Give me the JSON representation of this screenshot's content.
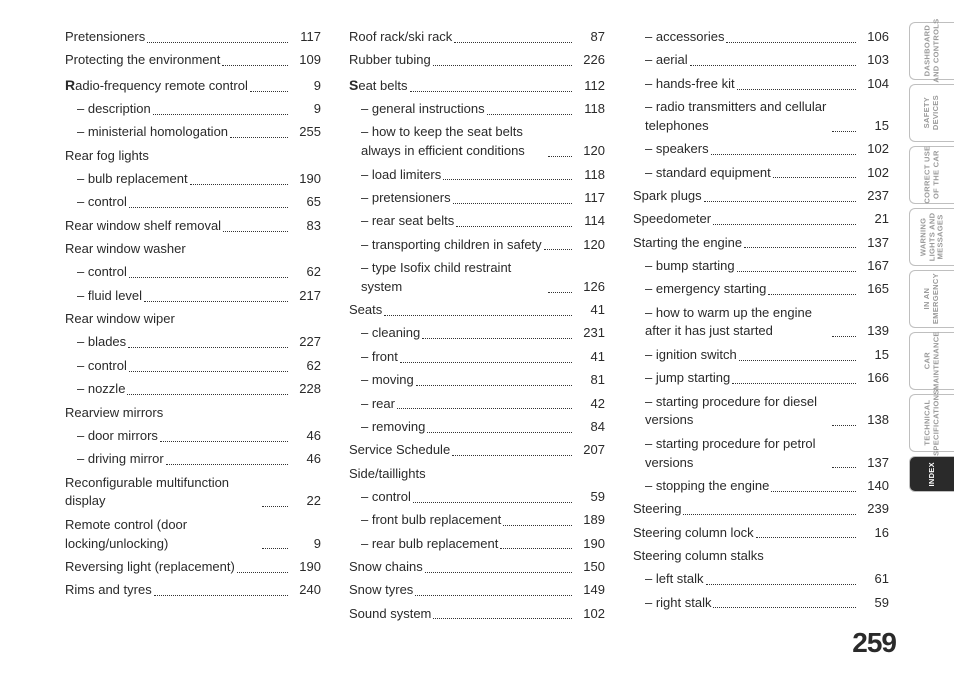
{
  "page_number": "259",
  "columns": [
    [
      {
        "t": "e",
        "label": "Pretensioners",
        "pg": "117"
      },
      {
        "t": "e",
        "label": "Protecting the environment",
        "pg": "109"
      },
      {
        "t": "e",
        "label": "adio-frequency remote control",
        "pg": "9",
        "cap": "R",
        "bold": true
      },
      {
        "t": "e",
        "label": "– description",
        "pg": "9",
        "sub": true
      },
      {
        "t": "e",
        "label": "– ministerial homologation",
        "pg": "255",
        "sub": true
      },
      {
        "t": "h",
        "label": "Rear fog lights"
      },
      {
        "t": "e",
        "label": "– bulb replacement",
        "pg": "190",
        "sub": true
      },
      {
        "t": "e",
        "label": "– control",
        "pg": "65",
        "sub": true
      },
      {
        "t": "e",
        "label": "Rear window shelf removal",
        "pg": "83"
      },
      {
        "t": "h",
        "label": "Rear window washer"
      },
      {
        "t": "e",
        "label": "– control",
        "pg": "62",
        "sub": true
      },
      {
        "t": "e",
        "label": "– fluid level",
        "pg": "217",
        "sub": true
      },
      {
        "t": "h",
        "label": "Rear window wiper"
      },
      {
        "t": "e",
        "label": "– blades",
        "pg": "227",
        "sub": true
      },
      {
        "t": "e",
        "label": "– control",
        "pg": "62",
        "sub": true
      },
      {
        "t": "e",
        "label": "– nozzle",
        "pg": "228",
        "sub": true
      },
      {
        "t": "h",
        "label": "Rearview mirrors"
      },
      {
        "t": "e",
        "label": "– door mirrors",
        "pg": "46",
        "sub": true
      },
      {
        "t": "e",
        "label": "– driving mirror",
        "pg": "46",
        "sub": true
      },
      {
        "t": "e",
        "label": "Reconfigurable multifunction display",
        "pg": "22",
        "wrap": true
      },
      {
        "t": "e",
        "label": "Remote control (door locking/unlocking)",
        "pg": "9",
        "wrap": true
      },
      {
        "t": "e",
        "label": "Reversing light (replacement)",
        "pg": "190"
      },
      {
        "t": "e",
        "label": "Rims and tyres",
        "pg": "240"
      }
    ],
    [
      {
        "t": "e",
        "label": "Roof rack/ski rack",
        "pg": "87"
      },
      {
        "t": "e",
        "label": "Rubber tubing",
        "pg": "226"
      },
      {
        "t": "e",
        "label": "eat belts",
        "pg": "112",
        "cap": "S",
        "bold": true
      },
      {
        "t": "e",
        "label": "– general instructions",
        "pg": "118",
        "sub": true
      },
      {
        "t": "e",
        "label": "– how to keep the seat belts always in efficient conditions",
        "pg": "120",
        "sub": true,
        "wrap": true
      },
      {
        "t": "e",
        "label": "– load limiters",
        "pg": "118",
        "sub": true
      },
      {
        "t": "e",
        "label": "– pretensioners",
        "pg": "117",
        "sub": true
      },
      {
        "t": "e",
        "label": "– rear seat belts",
        "pg": "114",
        "sub": true
      },
      {
        "t": "e",
        "label": "– transporting children in safety",
        "pg": "120",
        "sub": true
      },
      {
        "t": "e",
        "label": "– type Isofix child restraint system",
        "pg": "126",
        "sub": true,
        "wrap": true
      },
      {
        "t": "e",
        "label": "Seats",
        "pg": "41"
      },
      {
        "t": "e",
        "label": "– cleaning",
        "pg": "231",
        "sub": true
      },
      {
        "t": "e",
        "label": "– front",
        "pg": "41",
        "sub": true
      },
      {
        "t": "e",
        "label": "– moving",
        "pg": "81",
        "sub": true
      },
      {
        "t": "e",
        "label": "– rear",
        "pg": "42",
        "sub": true
      },
      {
        "t": "e",
        "label": "– removing",
        "pg": "84",
        "sub": true
      },
      {
        "t": "e",
        "label": "Service Schedule",
        "pg": "207"
      },
      {
        "t": "h",
        "label": "Side/taillights"
      },
      {
        "t": "e",
        "label": "– control",
        "pg": "59",
        "sub": true
      },
      {
        "t": "e",
        "label": "– front bulb replacement",
        "pg": "189",
        "sub": true
      },
      {
        "t": "e",
        "label": "– rear bulb replacement",
        "pg": "190",
        "sub": true
      },
      {
        "t": "e",
        "label": "Snow chains",
        "pg": "150"
      },
      {
        "t": "e",
        "label": "Snow tyres",
        "pg": "149"
      },
      {
        "t": "e",
        "label": "Sound system",
        "pg": "102"
      }
    ],
    [
      {
        "t": "e",
        "label": "– accessories",
        "pg": "106",
        "sub": true
      },
      {
        "t": "e",
        "label": "– aerial",
        "pg": "103",
        "sub": true
      },
      {
        "t": "e",
        "label": "– hands-free kit",
        "pg": "104",
        "sub": true
      },
      {
        "t": "e",
        "label": "– radio transmitters and cellular telephones",
        "pg": "15",
        "sub": true,
        "wrap": true
      },
      {
        "t": "e",
        "label": "– speakers",
        "pg": "102",
        "sub": true
      },
      {
        "t": "e",
        "label": "– standard equipment",
        "pg": "102",
        "sub": true
      },
      {
        "t": "e",
        "label": "Spark plugs",
        "pg": "237"
      },
      {
        "t": "e",
        "label": "Speedometer",
        "pg": "21"
      },
      {
        "t": "e",
        "label": "Starting the engine",
        "pg": "137"
      },
      {
        "t": "e",
        "label": "– bump starting",
        "pg": "167",
        "sub": true
      },
      {
        "t": "e",
        "label": "– emergency starting",
        "pg": "165",
        "sub": true
      },
      {
        "t": "e",
        "label": "– how to warm up the engine after it has just started",
        "pg": "139",
        "sub": true,
        "wrap": true
      },
      {
        "t": "e",
        "label": "– ignition switch",
        "pg": "15",
        "sub": true
      },
      {
        "t": "e",
        "label": "– jump starting",
        "pg": "166",
        "sub": true
      },
      {
        "t": "e",
        "label": "– starting procedure for diesel versions",
        "pg": "138",
        "sub": true,
        "wrap": true
      },
      {
        "t": "e",
        "label": "– starting procedure for petrol versions",
        "pg": "137",
        "sub": true,
        "wrap": true
      },
      {
        "t": "e",
        "label": "– stopping the engine",
        "pg": "140",
        "sub": true
      },
      {
        "t": "e",
        "label": "Steering",
        "pg": "239"
      },
      {
        "t": "e",
        "label": "Steering column lock",
        "pg": "16"
      },
      {
        "t": "h",
        "label": "Steering column stalks"
      },
      {
        "t": "e",
        "label": "– left stalk",
        "pg": "61",
        "sub": true
      },
      {
        "t": "e",
        "label": "– right stalk",
        "pg": "59",
        "sub": true
      }
    ]
  ],
  "tabs": [
    {
      "l1": "DASHBOARD",
      "l2": "AND CONTROLS"
    },
    {
      "l1": "SAFETY",
      "l2": "DEVICES"
    },
    {
      "l1": "CORRECT USE",
      "l2": "OF THE CAR"
    },
    {
      "l1": "WARNING",
      "l2": "LIGHTS AND",
      "l3": "MESSAGES"
    },
    {
      "l1": "IN AN",
      "l2": "EMERGENCY"
    },
    {
      "l1": "CAR",
      "l2": "MAINTENANCE"
    },
    {
      "l1": "TECHNICAL",
      "l2": "SPECIFICATIONS"
    },
    {
      "l1": "INDEX",
      "active": true,
      "short": true
    }
  ]
}
